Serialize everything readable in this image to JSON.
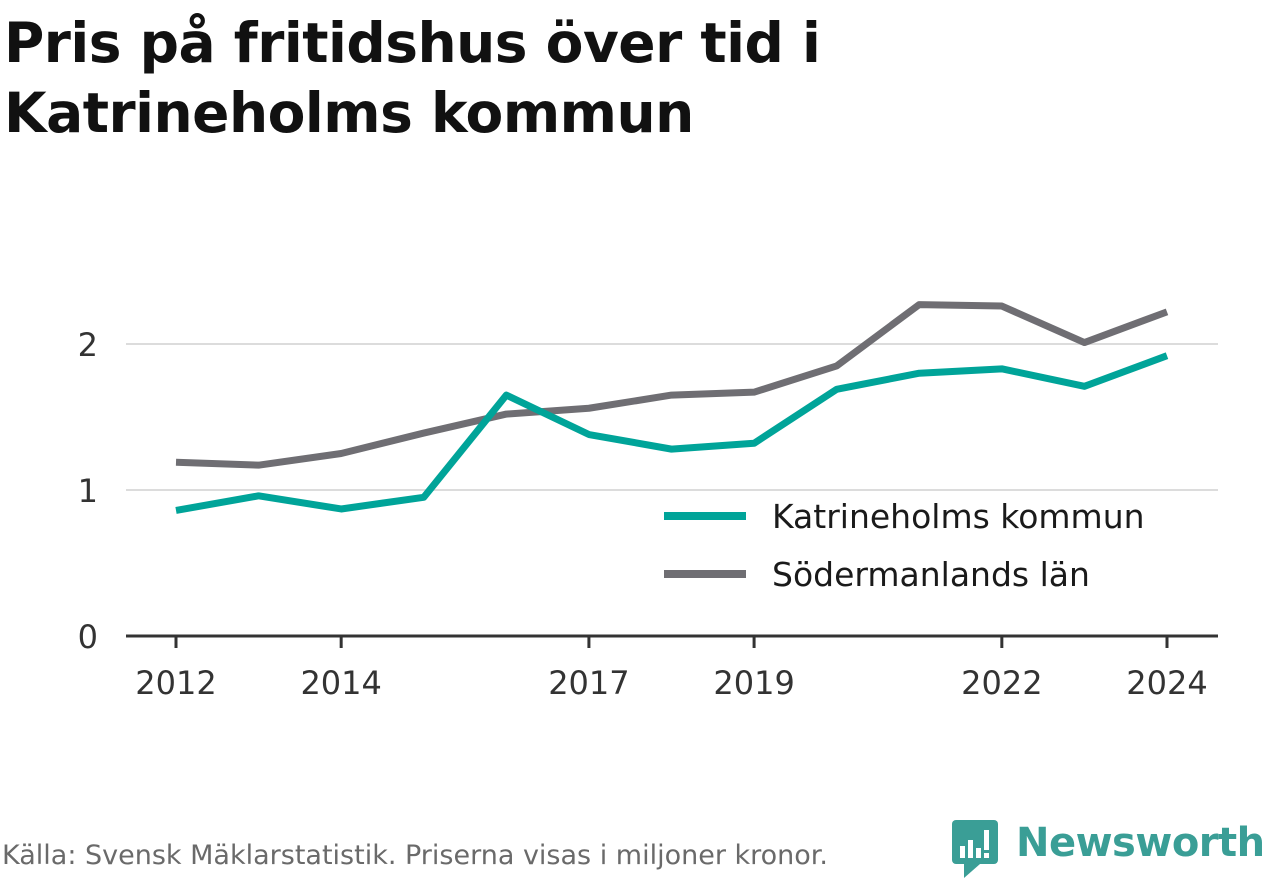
{
  "title_lines": [
    "Pris på fritidshus över tid i",
    "Katrineholms kommun"
  ],
  "footer": "Källa: Svensk Mäklarstatistik. Priserna visas i miljoner kronor.",
  "brand": {
    "name": "Newsworthy",
    "icon": "newsworthy-logo-icon",
    "color": "#3a9e96"
  },
  "chart_data": {
    "type": "line",
    "title": "Pris på fritidshus över tid i Katrineholms kommun",
    "x": [
      2012,
      2013,
      2014,
      2015,
      2016,
      2017,
      2018,
      2019,
      2020,
      2021,
      2022,
      2023,
      2024
    ],
    "xticks": [
      "2012",
      "2014",
      "2017",
      "2019",
      "2022",
      "2024"
    ],
    "yticks": [
      "0",
      "1",
      "2"
    ],
    "ylim": [
      0,
      2.5
    ],
    "grid": true,
    "legend_position": "lower-right",
    "series": [
      {
        "name": "Katrineholms kommun",
        "color": "#00a499",
        "values": [
          0.86,
          0.96,
          0.87,
          0.95,
          1.65,
          1.38,
          1.28,
          1.32,
          1.69,
          1.8,
          1.83,
          1.71,
          1.92
        ]
      },
      {
        "name": "Södermanlands län",
        "color": "#6f6e73",
        "values": [
          1.19,
          1.17,
          1.25,
          1.39,
          1.52,
          1.56,
          1.65,
          1.67,
          1.85,
          2.27,
          2.26,
          2.01,
          2.22
        ]
      }
    ]
  }
}
